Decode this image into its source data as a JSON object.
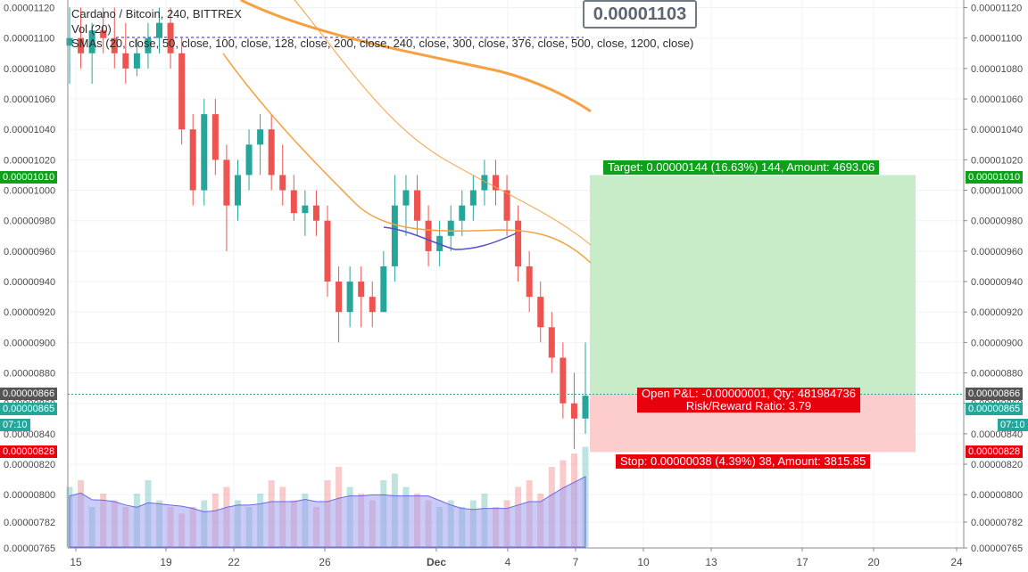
{
  "legend": {
    "title": "Cardano / Bitcoin, 240, BITTREX",
    "vol": "Vol (20)",
    "smas": "SMAs (20, close, 50, close, 100, close, 128, close, 200, close, 240, close, 300, close, 376, close, 500, close, 1200, close)"
  },
  "callout": "0.00001103",
  "target_label": "Target: 0.00000144 (16.63%) 144, Amount: 4693.06",
  "pnl_label": "Open P&L: -0.00000001, Qty: 481984736",
  "rr_label": "Risk/Reward Ratio: 3.79",
  "stop_label": "Stop: 0.00000038 (4.39%) 38, Amount: 3815.85",
  "badges": {
    "target": "0.00001010",
    "last": "0.00000866",
    "current": "0.00000865",
    "time": "07:10",
    "stop": "0.00000828"
  },
  "colors": {
    "up": "#26a69a",
    "down": "#ef5350",
    "target_fill": "#c8ebc8",
    "stop_fill": "#fdcdcd",
    "target_badge": "#0f9f1a",
    "stop_badge": "#e8000d",
    "sma_orange": "#f7a040",
    "sma_blue": "#5050d0",
    "vol_area": "#a0a0f0"
  },
  "chart_data": {
    "type": "candlestick",
    "title": "Cardano / Bitcoin, 240, BITTREX",
    "ylim": [
      7.65e-06,
      1.125e-05
    ],
    "y_ticks": [
      "0.00001120",
      "0.00001100",
      "0.00001080",
      "0.00001060",
      "0.00001040",
      "0.00001020",
      "0.00001000",
      "0.00000980",
      "0.00000960",
      "0.00000940",
      "0.00000920",
      "0.00000900",
      "0.00000880",
      "0.00000860",
      "0.00000840",
      "0.00000820",
      "0.00000800",
      "0.00000782",
      "0.00000765"
    ],
    "x_ticks": [
      "15",
      "19",
      "22",
      "26",
      "Dec",
      "4",
      "7",
      "10",
      "13",
      "17",
      "20",
      "24"
    ],
    "candles": [
      {
        "o": 1.095e-05,
        "h": 1.12e-05,
        "l": 1.07e-05,
        "c": 1.1e-05
      },
      {
        "o": 1.1e-05,
        "h": 1.12e-05,
        "l": 1.08e-05,
        "c": 1.09e-05
      },
      {
        "o": 1.09e-05,
        "h": 1.11e-05,
        "l": 1.07e-05,
        "c": 1.105e-05
      },
      {
        "o": 1.105e-05,
        "h": 1.12e-05,
        "l": 1.09e-05,
        "c": 1.1e-05
      },
      {
        "o": 1.1e-05,
        "h": 1.12e-05,
        "l": 1.08e-05,
        "c": 1.09e-05
      },
      {
        "o": 1.09e-05,
        "h": 1.11e-05,
        "l": 1.07e-05,
        "c": 1.08e-05
      },
      {
        "o": 1.08e-05,
        "h": 1.1e-05,
        "l": 1.075e-05,
        "c": 1.09e-05
      },
      {
        "o": 1.09e-05,
        "h": 1.11e-05,
        "l": 1.08e-05,
        "c": 1.1e-05
      },
      {
        "o": 1.1e-05,
        "h": 1.12e-05,
        "l": 1.09e-05,
        "c": 1.11e-05
      },
      {
        "o": 1.11e-05,
        "h": 1.12e-05,
        "l": 1.08e-05,
        "c": 1.09e-05
      },
      {
        "o": 1.09e-05,
        "h": 1.1e-05,
        "l": 1.03e-05,
        "c": 1.04e-05
      },
      {
        "o": 1.04e-05,
        "h": 1.05e-05,
        "l": 9.9e-06,
        "c": 1e-05
      },
      {
        "o": 1e-05,
        "h": 1.06e-05,
        "l": 9.9e-06,
        "c": 1.05e-05
      },
      {
        "o": 1.05e-05,
        "h": 1.06e-05,
        "l": 1.01e-05,
        "c": 1.02e-05
      },
      {
        "o": 1.02e-05,
        "h": 1.03e-05,
        "l": 9.6e-06,
        "c": 9.9e-06
      },
      {
        "o": 9.9e-06,
        "h": 1.02e-05,
        "l": 9.8e-06,
        "c": 1.01e-05
      },
      {
        "o": 1.01e-05,
        "h": 1.04e-05,
        "l": 1e-05,
        "c": 1.03e-05
      },
      {
        "o": 1.03e-05,
        "h": 1.05e-05,
        "l": 1.01e-05,
        "c": 1.04e-05
      },
      {
        "o": 1.04e-05,
        "h": 1.05e-05,
        "l": 1e-05,
        "c": 1.01e-05
      },
      {
        "o": 1.01e-05,
        "h": 1.03e-05,
        "l": 9.9e-06,
        "c": 1e-05
      },
      {
        "o": 1e-05,
        "h": 1.01e-05,
        "l": 9.8e-06,
        "c": 9.85e-06
      },
      {
        "o": 9.85e-06,
        "h": 1e-05,
        "l": 9.7e-06,
        "c": 9.9e-06
      },
      {
        "o": 9.9e-06,
        "h": 1e-05,
        "l": 9.7e-06,
        "c": 9.8e-06
      },
      {
        "o": 9.8e-06,
        "h": 9.9e-06,
        "l": 9.3e-06,
        "c": 9.4e-06
      },
      {
        "o": 9.4e-06,
        "h": 9.5e-06,
        "l": 9e-06,
        "c": 9.2e-06
      },
      {
        "o": 9.2e-06,
        "h": 9.5e-06,
        "l": 9.1e-06,
        "c": 9.4e-06
      },
      {
        "o": 9.4e-06,
        "h": 9.5e-06,
        "l": 9.1e-06,
        "c": 9.3e-06
      },
      {
        "o": 9.3e-06,
        "h": 9.4e-06,
        "l": 9.1e-06,
        "c": 9.2e-06
      },
      {
        "o": 9.2e-06,
        "h": 9.6e-06,
        "l": 9.2e-06,
        "c": 9.5e-06
      },
      {
        "o": 9.5e-06,
        "h": 1.01e-05,
        "l": 9.4e-06,
        "c": 9.9e-06
      },
      {
        "o": 9.9e-06,
        "h": 1.01e-05,
        "l": 9.7e-06,
        "c": 1e-05
      },
      {
        "o": 1e-05,
        "h": 1.01e-05,
        "l": 9.7e-06,
        "c": 9.8e-06
      },
      {
        "o": 9.8e-06,
        "h": 9.9e-06,
        "l": 9.5e-06,
        "c": 9.6e-06
      },
      {
        "o": 9.6e-06,
        "h": 9.8e-06,
        "l": 9.5e-06,
        "c": 9.7e-06
      },
      {
        "o": 9.7e-06,
        "h": 9.9e-06,
        "l": 9.6e-06,
        "c": 9.8e-06
      },
      {
        "o": 9.8e-06,
        "h": 1e-05,
        "l": 9.7e-06,
        "c": 9.9e-06
      },
      {
        "o": 9.9e-06,
        "h": 1.01e-05,
        "l": 9.8e-06,
        "c": 1e-05
      },
      {
        "o": 1e-05,
        "h": 1.02e-05,
        "l": 9.9e-06,
        "c": 1.01e-05
      },
      {
        "o": 1.01e-05,
        "h": 1.02e-05,
        "l": 9.9e-06,
        "c": 1e-05
      },
      {
        "o": 1e-05,
        "h": 1.01e-05,
        "l": 9.7e-06,
        "c": 9.8e-06
      },
      {
        "o": 9.8e-06,
        "h": 9.9e-06,
        "l": 9.4e-06,
        "c": 9.5e-06
      },
      {
        "o": 9.5e-06,
        "h": 9.6e-06,
        "l": 9.2e-06,
        "c": 9.3e-06
      },
      {
        "o": 9.3e-06,
        "h": 9.4e-06,
        "l": 9e-06,
        "c": 9.1e-06
      },
      {
        "o": 9.1e-06,
        "h": 9.2e-06,
        "l": 8.8e-06,
        "c": 8.9e-06
      },
      {
        "o": 8.9e-06,
        "h": 9e-06,
        "l": 8.5e-06,
        "c": 8.6e-06
      },
      {
        "o": 8.6e-06,
        "h": 8.8e-06,
        "l": 8.3e-06,
        "c": 8.5e-06
      },
      {
        "o": 8.5e-06,
        "h": 9e-06,
        "l": 8.4e-06,
        "c": 8.65e-06
      }
    ],
    "volume": [
      0.45,
      0.5,
      0.3,
      0.4,
      0.35,
      0.3,
      0.4,
      0.5,
      0.35,
      0.3,
      0.25,
      0.3,
      0.35,
      0.4,
      0.45,
      0.35,
      0.3,
      0.4,
      0.5,
      0.45,
      0.35,
      0.4,
      0.3,
      0.5,
      0.6,
      0.45,
      0.4,
      0.35,
      0.5,
      0.55,
      0.45,
      0.4,
      0.35,
      0.3,
      0.35,
      0.3,
      0.35,
      0.4,
      0.3,
      0.35,
      0.45,
      0.5,
      0.4,
      0.6,
      0.65,
      0.7,
      0.75
    ],
    "sma_levels": [
      {
        "name": "SMA long",
        "points": [
          [
            0,
            1.14e-05
          ],
          [
            46,
            1.05e-05
          ]
        ]
      },
      {
        "name": "SMA mid",
        "points": [
          [
            0,
            1.12e-05
          ],
          [
            16,
            1.04e-05
          ],
          [
            46,
            9.6e-06
          ]
        ]
      }
    ],
    "position": {
      "entry": 8.66e-06,
      "target": 1.01e-05,
      "stop": 8.28e-06
    }
  }
}
